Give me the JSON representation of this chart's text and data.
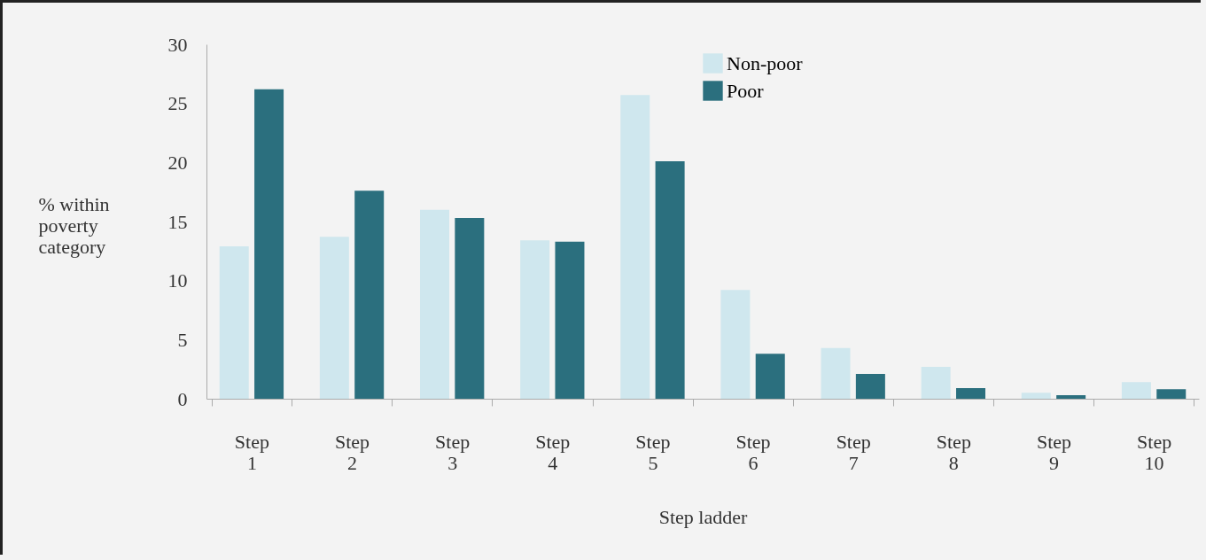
{
  "chart_data": {
    "type": "bar",
    "xlabel": "Step ladder",
    "ylabel": "% within poverty category",
    "categories": [
      "Step 1",
      "Step 2",
      "Step 3",
      "Step 4",
      "Step 5",
      "Step 6",
      "Step 7",
      "Step 8",
      "Step 9",
      "Step 10"
    ],
    "series": [
      {
        "name": "Non-poor",
        "color": "#cfe7ee",
        "values": [
          12.9,
          13.7,
          16.0,
          13.4,
          25.7,
          9.2,
          4.3,
          2.7,
          0.5,
          1.4
        ]
      },
      {
        "name": "Poor",
        "color": "#2b6f7e",
        "values": [
          26.2,
          17.6,
          15.3,
          13.3,
          20.1,
          3.8,
          2.1,
          0.9,
          0.3,
          0.8
        ]
      }
    ],
    "ylim": [
      0,
      30
    ],
    "yticks": [
      0,
      5,
      10,
      15,
      20,
      25,
      30
    ],
    "legend": "top"
  }
}
